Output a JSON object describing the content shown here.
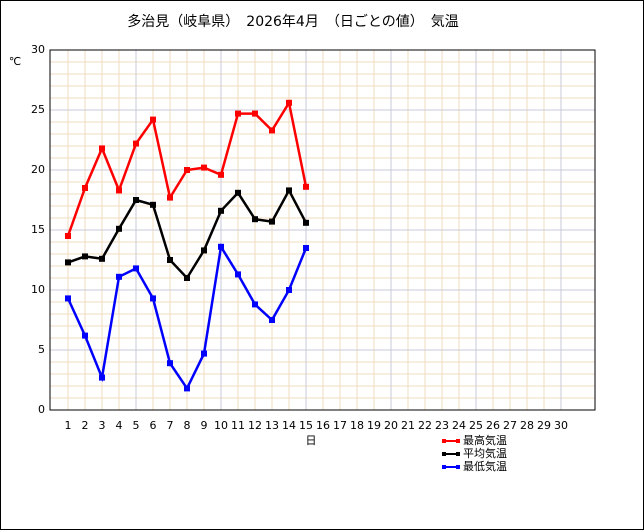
{
  "chart_data": {
    "type": "line",
    "title": "多治見（岐阜県）　2026年4月　（日ごとの値）　気温",
    "y_label": "℃",
    "x_label": "日",
    "categories": [
      "1",
      "2",
      "3",
      "4",
      "5",
      "6",
      "7",
      "8",
      "9",
      "10",
      "11",
      "12",
      "13",
      "14",
      "15",
      "16",
      "17",
      "18",
      "19",
      "20",
      "21",
      "22",
      "23",
      "24",
      "25",
      "26",
      "27",
      "28",
      "29",
      "30"
    ],
    "series": [
      {
        "name": "最高気温",
        "color": "#ff0000",
        "values": [
          14.5,
          18.5,
          21.8,
          18.3,
          22.2,
          24.2,
          17.7,
          20.0,
          20.2,
          19.6,
          24.7,
          24.7,
          23.3,
          25.6,
          18.6,
          null,
          null,
          null,
          null,
          null,
          null,
          null,
          null,
          null,
          null,
          null,
          null,
          null,
          null,
          null
        ]
      },
      {
        "name": "平均気温",
        "color": "#000000",
        "values": [
          12.3,
          12.8,
          12.6,
          15.1,
          17.5,
          17.1,
          12.5,
          11.0,
          13.3,
          16.6,
          18.1,
          15.9,
          15.7,
          18.3,
          15.6,
          null,
          null,
          null,
          null,
          null,
          null,
          null,
          null,
          null,
          null,
          null,
          null,
          null,
          null,
          null
        ]
      },
      {
        "name": "最低気温",
        "color": "#0000ff",
        "values": [
          9.3,
          6.2,
          2.7,
          11.1,
          11.8,
          9.3,
          3.9,
          1.8,
          4.7,
          13.6,
          11.3,
          8.8,
          7.5,
          10.0,
          13.5,
          null,
          null,
          null,
          null,
          null,
          null,
          null,
          null,
          null,
          null,
          null,
          null,
          null,
          null,
          null
        ]
      }
    ],
    "ylim": [
      0,
      30
    ],
    "yticks": [
      0,
      5,
      10,
      15,
      20,
      25,
      30
    ],
    "grid": true,
    "y_minor_step": 1,
    "x_major_every": 5
  }
}
